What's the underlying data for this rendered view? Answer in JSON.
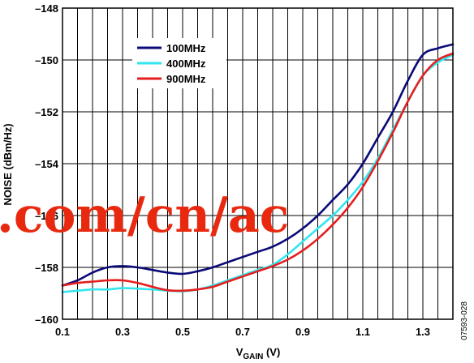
{
  "chart_data": {
    "type": "line",
    "title": "",
    "xlabel": {
      "main": "V",
      "sub": "GAIN",
      "unit": " (V)"
    },
    "ylabel": "NOISE (dBm/Hz)",
    "xlim": [
      0.1,
      1.4
    ],
    "ylim": [
      -160,
      -148
    ],
    "x_ticks": [
      0.1,
      0.3,
      0.5,
      0.7,
      0.9,
      1.1,
      1.3
    ],
    "x_tick_labels": [
      "0.1",
      "0.3",
      "0.5",
      "0.7",
      "0.9",
      "1.1",
      "1.3"
    ],
    "y_ticks": [
      -160,
      -158,
      -156,
      -154,
      -152,
      -150,
      -148
    ],
    "y_tick_labels": [
      "–160",
      "–158",
      "–156",
      "–154",
      "–152",
      "–150",
      "–148"
    ],
    "grid": true,
    "x_minor_step": 0.05,
    "legend": "top-left",
    "series": [
      {
        "name": "100MHz",
        "color": "#0a0a78",
        "x": [
          0.1,
          0.15,
          0.2,
          0.25,
          0.3,
          0.35,
          0.4,
          0.45,
          0.5,
          0.55,
          0.6,
          0.65,
          0.7,
          0.75,
          0.8,
          0.85,
          0.9,
          0.95,
          1.0,
          1.05,
          1.1,
          1.15,
          1.2,
          1.25,
          1.3,
          1.35,
          1.4
        ],
        "values": [
          -158.7,
          -158.5,
          -158.2,
          -158.0,
          -157.95,
          -158.0,
          -158.1,
          -158.2,
          -158.25,
          -158.15,
          -158.0,
          -157.8,
          -157.6,
          -157.4,
          -157.2,
          -156.9,
          -156.5,
          -156.0,
          -155.4,
          -154.8,
          -154.0,
          -153.0,
          -152.0,
          -150.8,
          -149.8,
          -149.55,
          -149.4
        ]
      },
      {
        "name": "400MHz",
        "color": "#33e6ee",
        "x": [
          0.1,
          0.15,
          0.2,
          0.25,
          0.3,
          0.35,
          0.4,
          0.45,
          0.5,
          0.55,
          0.6,
          0.65,
          0.7,
          0.75,
          0.8,
          0.85,
          0.9,
          0.95,
          1.0,
          1.05,
          1.1,
          1.15,
          1.2,
          1.25,
          1.3,
          1.35,
          1.4
        ],
        "values": [
          -158.95,
          -158.9,
          -158.85,
          -158.85,
          -158.8,
          -158.82,
          -158.85,
          -158.9,
          -158.92,
          -158.85,
          -158.7,
          -158.5,
          -158.3,
          -158.1,
          -157.9,
          -157.5,
          -157.0,
          -156.5,
          -156.0,
          -155.4,
          -154.7,
          -153.8,
          -152.7,
          -151.6,
          -150.6,
          -150.1,
          -149.8
        ]
      },
      {
        "name": "900MHz",
        "color": "#e61e1e",
        "x": [
          0.1,
          0.15,
          0.2,
          0.25,
          0.3,
          0.35,
          0.4,
          0.45,
          0.5,
          0.55,
          0.6,
          0.65,
          0.7,
          0.75,
          0.8,
          0.85,
          0.9,
          0.95,
          1.0,
          1.05,
          1.1,
          1.15,
          1.2,
          1.25,
          1.3,
          1.35,
          1.4
        ],
        "values": [
          -158.7,
          -158.6,
          -158.55,
          -158.5,
          -158.5,
          -158.6,
          -158.75,
          -158.88,
          -158.9,
          -158.85,
          -158.75,
          -158.55,
          -158.35,
          -158.15,
          -157.95,
          -157.7,
          -157.35,
          -156.9,
          -156.35,
          -155.7,
          -154.9,
          -153.9,
          -152.8,
          -151.6,
          -150.6,
          -150.0,
          -149.75
        ]
      }
    ]
  },
  "watermark": ".com/cn/ac",
  "figure_id": "07593-028"
}
